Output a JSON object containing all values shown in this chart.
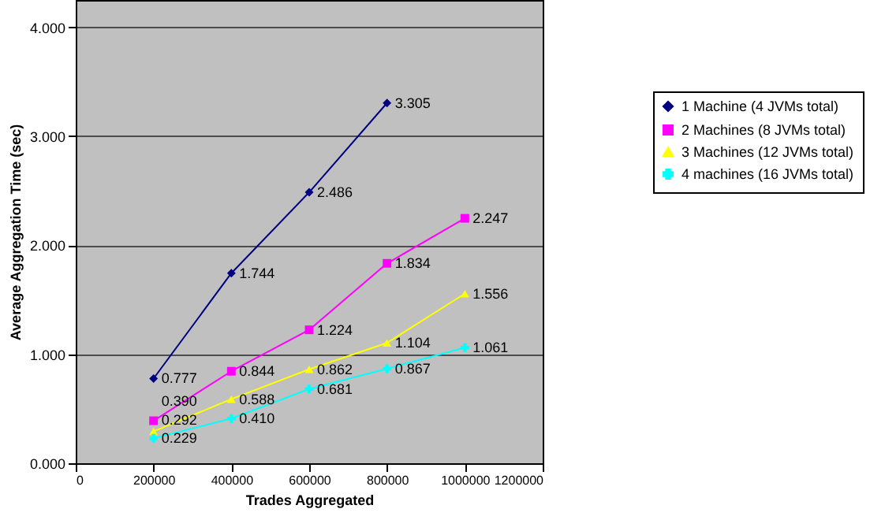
{
  "chart_data": {
    "type": "line",
    "xlabel": "Trades Aggregated",
    "ylabel": "Average Aggregation Time (sec)",
    "x": [
      200000,
      400000,
      600000,
      800000,
      1000000
    ],
    "series": [
      {
        "name": "1 Machine (4 JVMs total)",
        "color": "#000080",
        "marker": "diamond",
        "values": [
          0.777,
          1.744,
          2.486,
          3.305,
          null
        ],
        "value_labels": [
          "0.777",
          "1.744",
          "2.486",
          "3.305",
          null
        ]
      },
      {
        "name": "2 Machines (8 JVMs total)",
        "color": "#ff00ff",
        "marker": "square",
        "values": [
          0.39,
          0.844,
          1.224,
          1.834,
          2.247
        ],
        "value_labels": [
          "0.390",
          "0.844",
          "1.224",
          "1.834",
          "2.247"
        ]
      },
      {
        "name": "3 Machines (12 JVMs total)",
        "color": "#ffff00",
        "marker": "triangle",
        "values": [
          0.292,
          0.588,
          0.862,
          1.104,
          1.556
        ],
        "value_labels": [
          "0.292",
          "0.588",
          "0.862",
          "1.104",
          "1.556"
        ]
      },
      {
        "name": "4 machines (16 JVMs total)",
        "color": "#00ffff",
        "marker": "cross",
        "values": [
          0.229,
          0.41,
          0.681,
          0.867,
          1.061
        ],
        "value_labels": [
          "0.229",
          "0.410",
          "0.681",
          "0.867",
          "1.061"
        ]
      }
    ],
    "xlim": [
      0,
      1200000
    ],
    "xticks": [
      0,
      200000,
      400000,
      600000,
      800000,
      1000000,
      1200000
    ],
    "ylim": [
      0,
      4.25
    ],
    "yticks": [
      {
        "value": 0,
        "label": "0.000"
      },
      {
        "value": 1,
        "label": "1.000"
      },
      {
        "value": 2,
        "label": "2.000"
      },
      {
        "value": 3,
        "label": "3.000"
      },
      {
        "value": 4,
        "label": "4.000"
      }
    ],
    "grid": "y",
    "legend": "right",
    "line_style": "solid"
  }
}
